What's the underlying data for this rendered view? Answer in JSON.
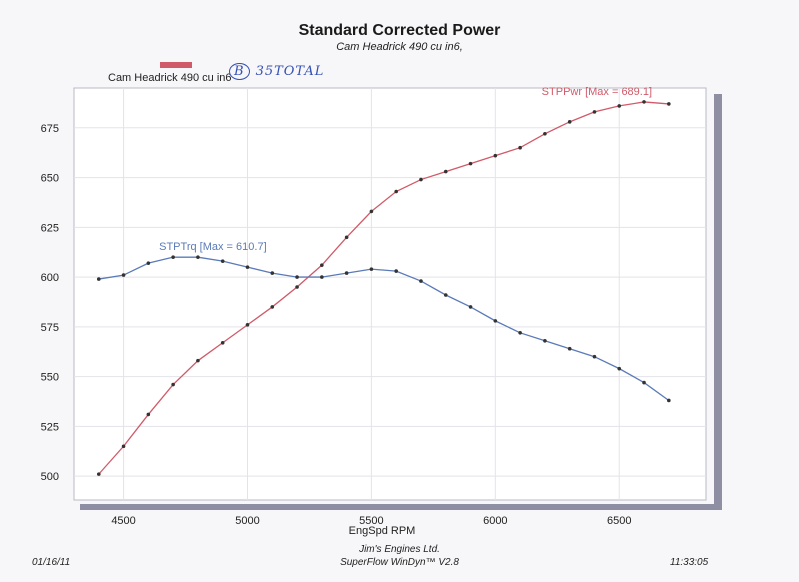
{
  "chart_data": {
    "type": "line",
    "title": "Standard Corrected Power",
    "subtitle": "Cam Headrick  490 cu in6,",
    "xlabel": "EngSpd  RPM",
    "ylabel": "",
    "xlim": [
      4300,
      6850
    ],
    "ylim": [
      488,
      695
    ],
    "x_ticks": [
      4500,
      5000,
      5500,
      6000,
      6500
    ],
    "y_ticks": [
      500,
      525,
      550,
      575,
      600,
      625,
      650,
      675
    ],
    "grid": true,
    "legend": {
      "label": "Cam Headrick  490 cu in6",
      "position": "top-left"
    },
    "series": [
      {
        "name": "STPPwr",
        "color": "#d05a68",
        "label": "STPPwr [Max = 689.1]",
        "x": [
          4400,
          4500,
          4600,
          4700,
          4800,
          4900,
          5000,
          5100,
          5200,
          5300,
          5400,
          5500,
          5600,
          5700,
          5800,
          5900,
          6000,
          6100,
          6200,
          6300,
          6400,
          6500,
          6600,
          6700
        ],
        "values": [
          501,
          515,
          531,
          546,
          558,
          567,
          576,
          585,
          595,
          606,
          620,
          633,
          643,
          649,
          653,
          657,
          661,
          665,
          672,
          678,
          683,
          686,
          688,
          687
        ]
      },
      {
        "name": "STPTrq",
        "color": "#5a7ab8",
        "label": "STPTrq [Max = 610.7]",
        "x": [
          4400,
          4500,
          4600,
          4700,
          4800,
          4900,
          5000,
          5100,
          5200,
          5300,
          5400,
          5500,
          5600,
          5700,
          5800,
          5900,
          6000,
          6100,
          6200,
          6300,
          6400,
          6500,
          6600,
          6700
        ],
        "values": [
          599,
          601,
          607,
          610,
          610,
          608,
          605,
          602,
          600,
          600,
          602,
          604,
          603,
          598,
          591,
          585,
          578,
          572,
          568,
          564,
          560,
          554,
          547,
          538
        ]
      }
    ]
  },
  "annotations": {
    "handwriting_circled": "B",
    "handwriting_note": "35TOTAL"
  },
  "footer": {
    "date": "01/16/11",
    "company": "Jim's Engines Ltd.",
    "software": "SuperFlow WinDyn™ V2.8",
    "time": "11:33:05"
  }
}
